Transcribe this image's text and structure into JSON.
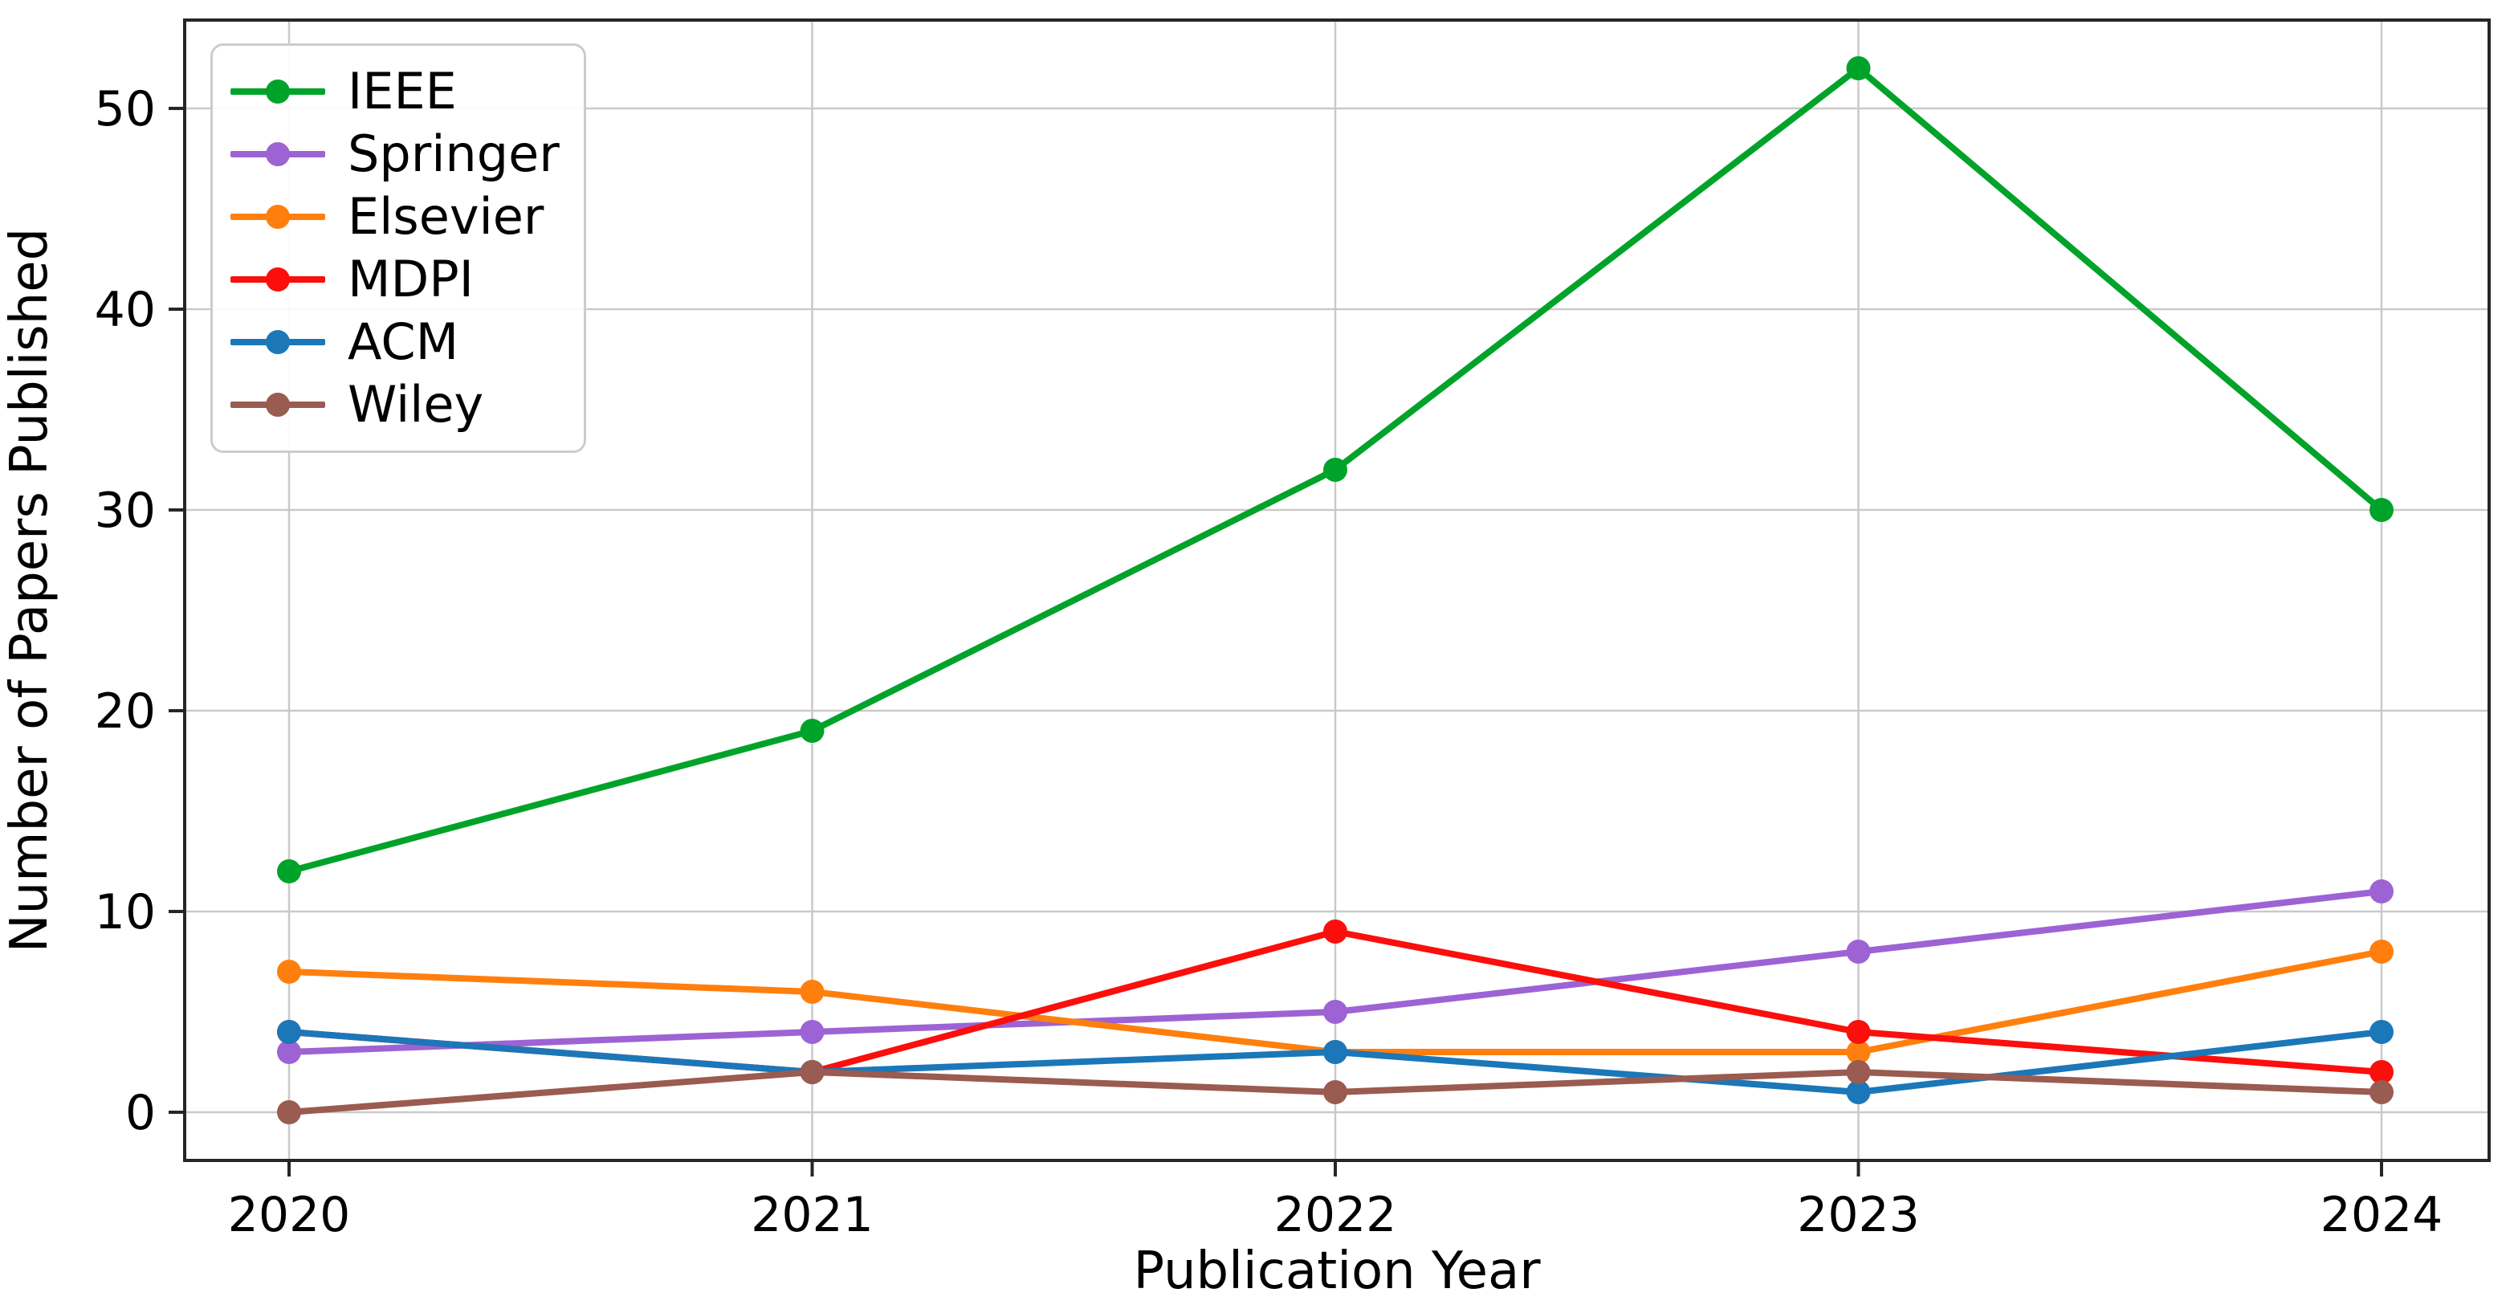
{
  "chart_data": {
    "type": "line",
    "x": [
      2020,
      2021,
      2022,
      2023,
      2024
    ],
    "x_tick_labels": [
      "2020",
      "2021",
      "2022",
      "2023",
      "2024"
    ],
    "yticks": [
      0,
      10,
      20,
      30,
      40,
      50
    ],
    "ylim": [
      -2.4,
      54.4
    ],
    "xlabel": "Publication Year",
    "ylabel": "Number of Papers Published",
    "grid": true,
    "legend_position": "upper-left",
    "series": [
      {
        "name": "IEEE",
        "color": "#00a329",
        "values": [
          12,
          19,
          32,
          52,
          30
        ]
      },
      {
        "name": "Springer",
        "color": "#9d63d4",
        "values": [
          3,
          4,
          5,
          8,
          11
        ]
      },
      {
        "name": "Elsevier",
        "color": "#ff7f0e",
        "values": [
          7,
          6,
          3,
          3,
          8
        ]
      },
      {
        "name": "MDPI",
        "color": "#fa0f0c",
        "values": [
          4,
          2,
          9,
          4,
          2
        ]
      },
      {
        "name": "ACM",
        "color": "#1b77b8",
        "values": [
          4,
          2,
          3,
          1,
          4
        ]
      },
      {
        "name": "Wiley",
        "color": "#9a5b50",
        "values": [
          0,
          2,
          1,
          2,
          1
        ]
      }
    ],
    "style": {
      "grid_color": "#c9c9c9",
      "spine_color": "#262626",
      "tick_color": "#262626"
    }
  }
}
